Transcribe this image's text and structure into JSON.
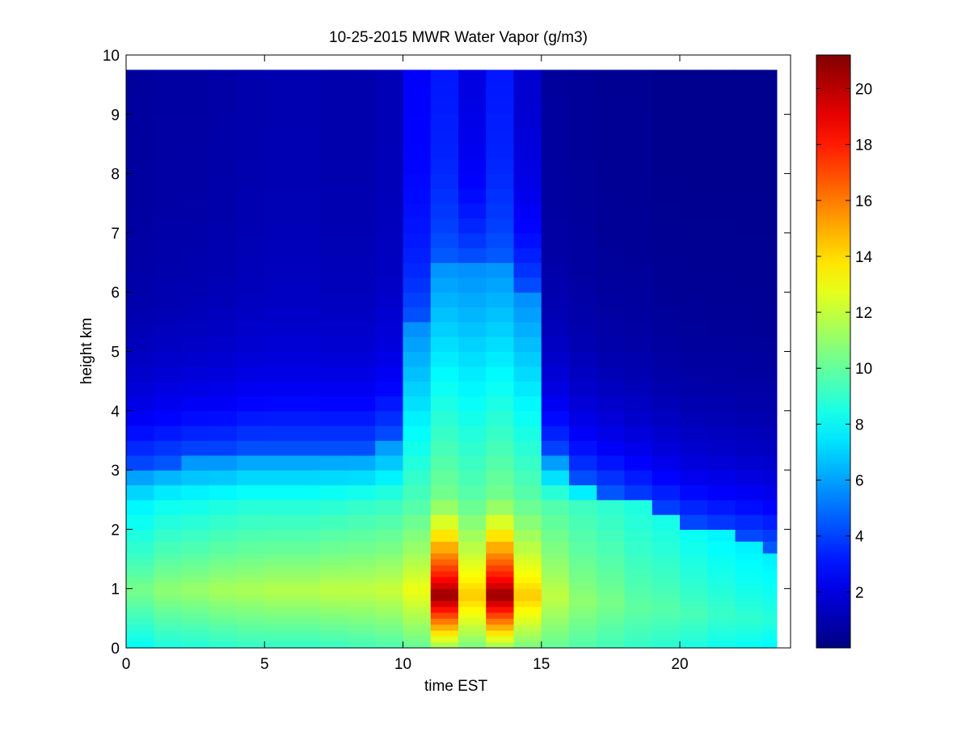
{
  "chart_data": {
    "type": "heatmap",
    "title": "10-25-2015 MWR Water Vapor (g/m3)",
    "xlabel": "time EST",
    "ylabel": "height km",
    "xlim": [
      0,
      24
    ],
    "ylim": [
      0,
      10
    ],
    "x_ticks": [
      "0",
      "5",
      "10",
      "15",
      "20"
    ],
    "y_ticks": [
      "0",
      "1",
      "2",
      "3",
      "4",
      "5",
      "6",
      "7",
      "8",
      "9",
      "10"
    ],
    "colorbar": {
      "colormap": "jet",
      "range": [
        0,
        21.2
      ],
      "ticks": [
        "2",
        "4",
        "6",
        "8",
        "10",
        "12",
        "14",
        "16",
        "18",
        "20"
      ]
    },
    "data_extent": {
      "time_start": 0,
      "time_end": 23.5,
      "time_step": 1,
      "height_top": 9.75
    },
    "heights_km": [
      0,
      0.1,
      0.2,
      0.3,
      0.4,
      0.5,
      0.6,
      0.7,
      0.8,
      0.9,
      1.0,
      1.1,
      1.2,
      1.3,
      1.4,
      1.5,
      1.6,
      1.8,
      2.0,
      2.25,
      2.5,
      2.75,
      3.0,
      3.25,
      3.5,
      3.75,
      4.0,
      4.25,
      4.5,
      4.75,
      5.0,
      5.25,
      5.5,
      5.75,
      6.0,
      6.25,
      6.5,
      6.75,
      7.0,
      7.25,
      7.5,
      7.75,
      8.0,
      8.25,
      8.5,
      8.75,
      9.0,
      9.25,
      9.5,
      9.75
    ],
    "times_est": [
      0,
      1,
      2,
      3,
      4,
      5,
      6,
      7,
      8,
      9,
      10,
      11,
      12,
      13,
      14,
      15,
      16,
      17,
      18,
      19,
      20,
      21,
      22,
      23
    ],
    "surface_vapor_g_m3": [
      8.0,
      8.5,
      8.6,
      8.8,
      9.0,
      9.0,
      9.0,
      9.1,
      9.3,
      9.5,
      10.0,
      11.0,
      10.4,
      11.0,
      10.4,
      10.0,
      9.6,
      9.3,
      9.0,
      8.8,
      8.5,
      8.2,
      8.0,
      7.8
    ],
    "peak_vapor_g_m3": [
      10.5,
      11.0,
      11.2,
      11.5,
      11.6,
      11.8,
      11.8,
      12.0,
      12.0,
      12.2,
      13.0,
      21.0,
      14.5,
      21.0,
      14.5,
      12.0,
      11.0,
      10.5,
      10.0,
      9.8,
      9.5,
      9.2,
      9.0,
      8.8
    ],
    "peak_height_km": [
      1.0,
      1.0,
      1.0,
      1.0,
      1.0,
      1.0,
      1.0,
      1.0,
      1.0,
      1.0,
      1.0,
      0.9,
      0.9,
      0.9,
      0.9,
      0.9,
      0.8,
      0.8,
      0.7,
      0.7,
      0.6,
      0.6,
      0.5,
      0.5
    ],
    "moist_layer_top_km": [
      3.0,
      3.1,
      3.2,
      3.2,
      3.3,
      3.3,
      3.3,
      3.3,
      3.3,
      3.5,
      5.5,
      6.6,
      6.5,
      6.6,
      6.0,
      3.2,
      2.8,
      2.6,
      2.4,
      2.2,
      2.0,
      1.9,
      1.8,
      1.7
    ],
    "upper_vapor_g_m3": [
      0.6,
      0.7,
      0.7,
      0.8,
      0.9,
      1.0,
      1.0,
      0.9,
      0.9,
      1.1,
      2.5,
      3.0,
      1.8,
      3.0,
      1.5,
      0.6,
      0.5,
      0.4,
      0.4,
      0.3,
      0.3,
      0.3,
      0.3,
      0.3
    ]
  }
}
